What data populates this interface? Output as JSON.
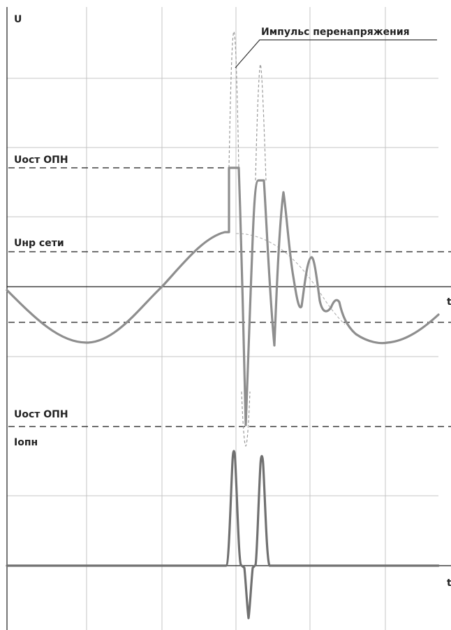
{
  "diagram": {
    "y_axis_label": "U",
    "x_axis_label_top": "t",
    "x_axis_label_bottom": "t",
    "annotation": "Импульс перенапряжения",
    "label_uost_top": "Uост ОПН",
    "label_unr": "Uнр сети",
    "label_uost_bottom": "Uост ОПН",
    "label_iopn": "Iопн",
    "colors": {
      "grid": "#c4c4c4",
      "axis": "#1a1a1a",
      "dashed": "#1a1a1a",
      "signal": "#8e8e8e",
      "impulse_dashed": "#9a9a9a",
      "current": "#707070",
      "background": "#ffffff"
    }
  }
}
